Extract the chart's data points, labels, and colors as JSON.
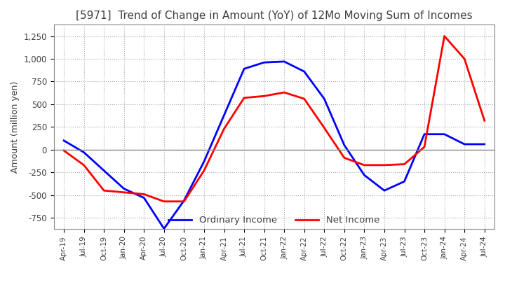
{
  "title": "[5971]  Trend of Change in Amount (YoY) of 12Mo Moving Sum of Incomes",
  "ylabel": "Amount (million yen)",
  "ylim": [
    -875,
    1375
  ],
  "yticks": [
    -750,
    -500,
    -250,
    0,
    250,
    500,
    750,
    1000,
    1250
  ],
  "x_labels": [
    "Apr-19",
    "Jul-19",
    "Oct-19",
    "Jan-20",
    "Apr-20",
    "Jul-20",
    "Oct-20",
    "Jan-21",
    "Apr-21",
    "Jul-21",
    "Oct-21",
    "Jan-22",
    "Apr-22",
    "Jul-22",
    "Oct-22",
    "Jan-23",
    "Apr-23",
    "Jul-23",
    "Oct-23",
    "Jan-24",
    "Apr-24",
    "Jul-24"
  ],
  "ordinary_income": [
    100,
    -30,
    -230,
    -430,
    -530,
    -870,
    -560,
    -130,
    380,
    890,
    960,
    970,
    860,
    560,
    50,
    -280,
    -450,
    -350,
    170,
    170,
    60,
    60
  ],
  "net_income": [
    -10,
    -170,
    -450,
    -470,
    -490,
    -570,
    -570,
    -230,
    230,
    570,
    590,
    630,
    560,
    240,
    -90,
    -170,
    -170,
    -160,
    30,
    1250,
    1000,
    320
  ],
  "ordinary_color": "#0000ff",
  "net_color": "#ff0000",
  "background_color": "#ffffff",
  "grid_color": "#aaaaaa",
  "title_color": "#404040",
  "zero_line_color": "#888888",
  "spine_color": "#888888",
  "legend_labels": [
    "Ordinary Income",
    "Net Income"
  ]
}
